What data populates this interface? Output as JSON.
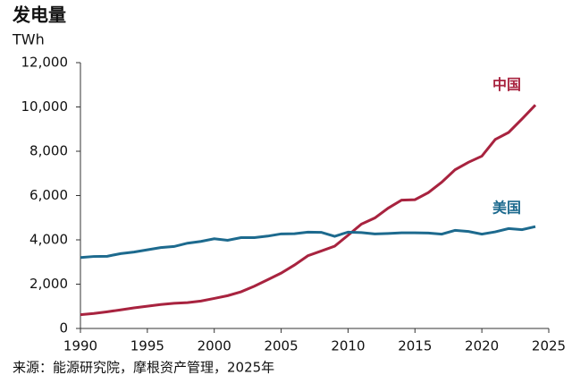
{
  "chart_data": {
    "type": "line",
    "title": "发电量",
    "y_label": "TWh",
    "source": "来源：能源研究院，摩根资产管理，2025年",
    "x": [
      1990,
      1991,
      1992,
      1993,
      1994,
      1995,
      1996,
      1997,
      1998,
      1999,
      2000,
      2001,
      2002,
      2003,
      2004,
      2005,
      2006,
      2007,
      2008,
      2009,
      2010,
      2011,
      2012,
      2013,
      2014,
      2015,
      2016,
      2017,
      2018,
      2019,
      2020,
      2021,
      2022,
      2023,
      2024
    ],
    "series": [
      {
        "name": "中国",
        "color": "#a8233f",
        "values": [
          621,
          678,
          754,
          840,
          928,
          1007,
          1081,
          1134,
          1166,
          1239,
          1356,
          1480,
          1654,
          1911,
          2203,
          2500,
          2866,
          3282,
          3496,
          3714,
          4207,
          4713,
          4988,
          5432,
          5795,
          5815,
          6133,
          6604,
          7166,
          7503,
          7779,
          8534,
          8849,
          9456,
          10087
        ]
      },
      {
        "name": "美国",
        "color": "#1d6a8e",
        "values": [
          3200,
          3250,
          3260,
          3380,
          3450,
          3550,
          3650,
          3700,
          3850,
          3930,
          4050,
          3980,
          4100,
          4100,
          4170,
          4270,
          4280,
          4350,
          4340,
          4160,
          4350,
          4330,
          4270,
          4290,
          4320,
          4320,
          4310,
          4260,
          4430,
          4380,
          4260,
          4360,
          4510,
          4460,
          4600
        ]
      }
    ],
    "xlim": [
      1990,
      2025
    ],
    "xticks": [
      1990,
      1995,
      2000,
      2005,
      2010,
      2015,
      2020,
      2025
    ],
    "ylim": [
      0,
      12000
    ],
    "yticks": [
      0,
      {
        "value": 2000,
        "label": "2,000"
      },
      {
        "value": 4000,
        "label": "4,000"
      },
      {
        "value": 6000,
        "label": "6,000"
      },
      {
        "value": 8000,
        "label": "8,000"
      },
      {
        "value": 10000,
        "label": "10,000"
      },
      {
        "value": 12000,
        "label": "12,000"
      }
    ]
  }
}
